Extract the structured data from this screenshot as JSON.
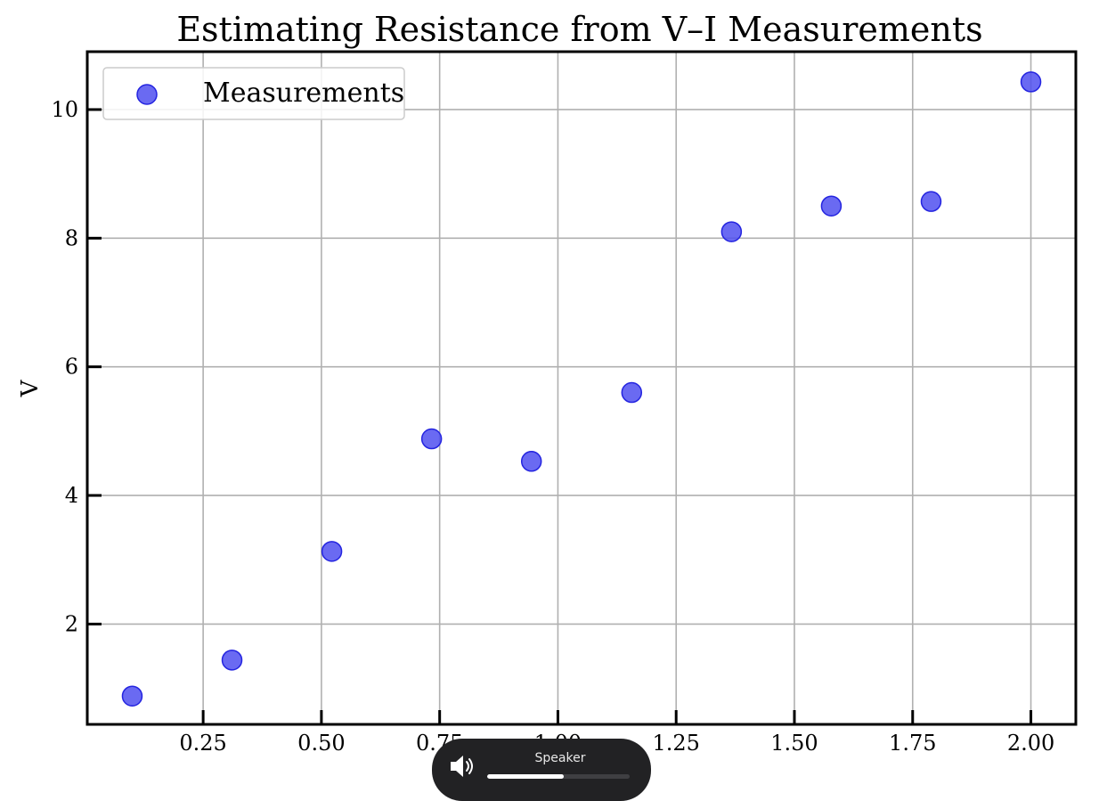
{
  "chart_data": {
    "type": "scatter",
    "title": "Estimating Resistance from V–I Measurements",
    "xlabel": "",
    "ylabel": "V",
    "xlim": [
      0.005,
      2.095
    ],
    "ylim": [
      0.44,
      10.9
    ],
    "xticks": [
      0.25,
      0.5,
      0.75,
      1.0,
      1.25,
      1.5,
      1.75,
      2.0
    ],
    "xtick_labels": [
      "0.25",
      "0.50",
      "0.75",
      "1.00",
      "1.25",
      "1.50",
      "1.75",
      "2.00"
    ],
    "yticks": [
      2,
      4,
      6,
      8,
      10
    ],
    "ytick_labels": [
      "2",
      "4",
      "6",
      "8",
      "10"
    ],
    "grid": true,
    "legend_position": "top-left",
    "series": [
      {
        "name": "Measurements",
        "color": "#5050f0",
        "edge_color": "#2424e0",
        "x": [
          0.1,
          0.311,
          0.522,
          0.733,
          0.944,
          1.156,
          1.367,
          1.578,
          1.789,
          2.0
        ],
        "y": [
          0.88,
          1.44,
          3.13,
          4.88,
          4.53,
          5.6,
          8.1,
          8.5,
          8.57,
          10.43
        ]
      }
    ]
  },
  "volume_osd": {
    "label": "Speaker",
    "icon": "speaker-volume-icon",
    "level_percent": 54
  }
}
